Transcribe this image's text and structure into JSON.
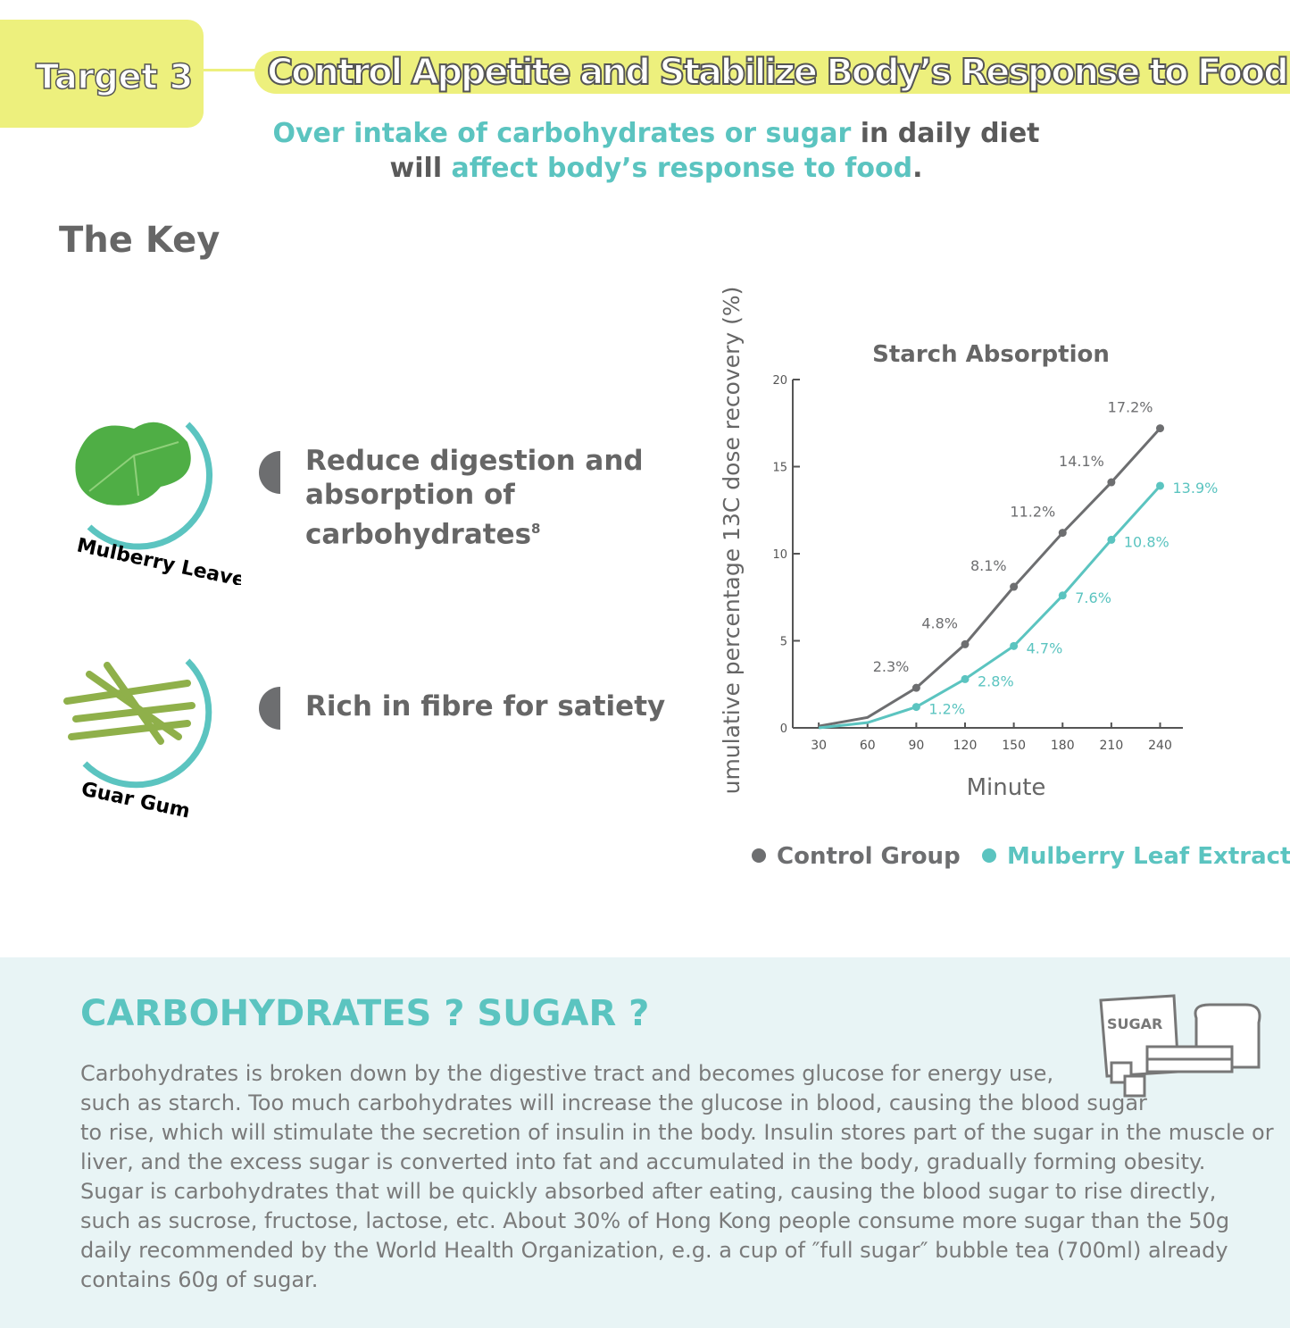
{
  "header": {
    "target": "Target 3",
    "title": "Control Appetite and Stabilize Body’s Response to Food"
  },
  "intro": [
    [
      {
        "text": "Over intake of carbohydrates or sugar",
        "color": "#5bc4c0"
      },
      {
        "text": " in daily diet",
        "color": "#5a5a5a"
      }
    ],
    [
      {
        "text": "will ",
        "color": "#5a5a5a"
      },
      {
        "text": "affect body’s response to food",
        "color": "#5bc4c0"
      },
      {
        "text": ".",
        "color": "#5a5a5a"
      }
    ]
  ],
  "key": {
    "title": "The Key",
    "items": [
      {
        "label": "Mulberry Leaves",
        "text": "Reduce digestion and absorption of carbohydrates",
        "sup": "8"
      },
      {
        "label": "Guar Gum",
        "text": "Rich in fibre for satiety"
      }
    ]
  },
  "chart_data": {
    "type": "line",
    "title": "Starch Absorption",
    "y_label": "umulative percentage 13C dose recovery (%)",
    "x_label": "Minute",
    "x": [
      30,
      60,
      90,
      120,
      150,
      180,
      210,
      240
    ],
    "xlim": [
      14,
      254
    ],
    "xticks": [
      30,
      60,
      90,
      120,
      150,
      180,
      210,
      240
    ],
    "ylim": [
      0,
      20
    ],
    "yticks": [
      0,
      5,
      10,
      15,
      20
    ],
    "series": [
      {
        "name": "Control Group",
        "color": "#6d6e70",
        "values": [
          0.1,
          0.6,
          2.3,
          4.8,
          8.1,
          11.2,
          14.1,
          17.2
        ],
        "value_labels": [
          null,
          null,
          "2.3%",
          "4.8%",
          "8.1%",
          "11.2%",
          "14.1%",
          "17.2%"
        ]
      },
      {
        "name": "Mulberry Leaf Extract",
        "color": "#5bc4c0",
        "values": [
          0,
          0.3,
          1.2,
          2.8,
          4.7,
          7.6,
          10.8,
          13.9
        ],
        "value_labels": [
          null,
          null,
          "1.2%",
          "2.8%",
          "4.7%",
          "7.6%",
          "10.8%",
          "13.9%"
        ]
      }
    ]
  },
  "info": {
    "title": "CARBOHYDRATES ? SUGAR ?",
    "icon_label": "SUGAR",
    "lines": [
      "Carbohydrates is broken down by the digestive tract and becomes glucose for energy use,",
      "such as starch. Too much carbohydrates will increase the glucose in blood, causing the blood sugar",
      "to rise, which will stimulate the secretion of insulin in the body. Insulin stores part of the sugar in the muscle or",
      "liver, and the excess sugar is converted into fat and accumulated in the body, gradually forming obesity.",
      "Sugar is carbohydrates that will be quickly absorbed after eating, causing the blood sugar to rise directly,",
      "such as sucrose, fructose, lactose, etc. About 30% of Hong Kong people consume more sugar than the 50g",
      "daily recommended by the World Health Organization, e.g. a cup of ″full sugar″ bubble tea (700ml) already",
      "contains 60g of sugar."
    ]
  }
}
